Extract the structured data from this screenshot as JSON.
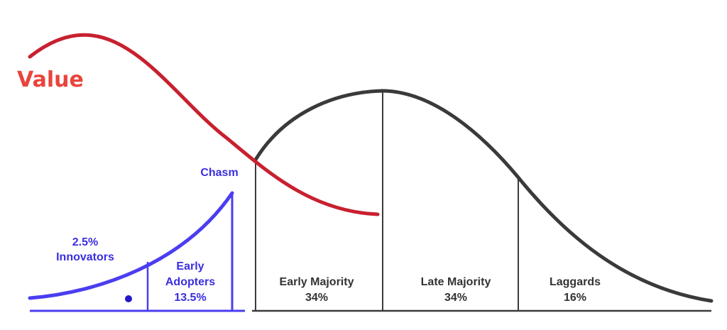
{
  "value_label": "Value",
  "chasm_label": "Chasm",
  "segments": {
    "innovators": {
      "line1": "2.5%",
      "line2": "Innovators"
    },
    "early_adopters": {
      "line1": "Early",
      "line2": "Adopters",
      "line3": "13.5%"
    },
    "early_majority": {
      "line1": "Early Majority",
      "line2": "34%"
    },
    "late_majority": {
      "line1": "Late Majority",
      "line2": "34%"
    },
    "laggards": {
      "line1": "Laggards",
      "line2": "16%"
    }
  },
  "colors": {
    "value_curve": "#c8202f",
    "value_text": "#e8453c",
    "adoption_curve": "#3a3a3a",
    "early_curve": "#4b3df0",
    "label_blue": "#3a2fe0",
    "label_dark": "#333333"
  }
}
